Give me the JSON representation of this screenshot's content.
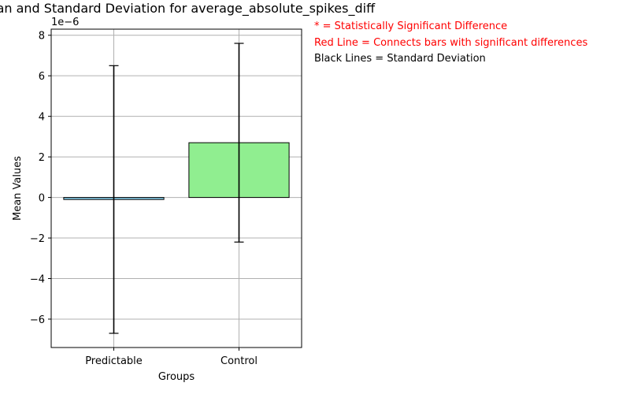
{
  "chart_data": {
    "type": "bar",
    "title": "Mean and Standard Deviation for average_absolute_spikes_diff",
    "xlabel": "Groups",
    "ylabel": "Mean Values",
    "y_offset_label": "1e−6",
    "categories": [
      "Predictable",
      "Control"
    ],
    "values": [
      -1e-07,
      2.7e-06
    ],
    "std": [
      6.6e-06,
      4.9e-06
    ],
    "ylim": [
      -7.4e-06,
      8.3e-06
    ],
    "y_ticks": [
      -6e-06,
      -4e-06,
      -2e-06,
      0,
      2e-06,
      4e-06,
      6e-06,
      8e-06
    ],
    "y_tick_labels": [
      "−6",
      "−4",
      "−2",
      "0",
      "2",
      "4",
      "6",
      "8"
    ],
    "grid": true,
    "bar_colors": [
      "#87ceeb",
      "#90ee90"
    ]
  },
  "annotations": [
    {
      "text": "* = Statistically Significant Difference",
      "color": "#ff0000"
    },
    {
      "text": "Red Line = Connects bars with significant differences",
      "color": "#ff0000"
    },
    {
      "text": "Black Lines = Standard Deviation",
      "color": "#000000"
    }
  ]
}
